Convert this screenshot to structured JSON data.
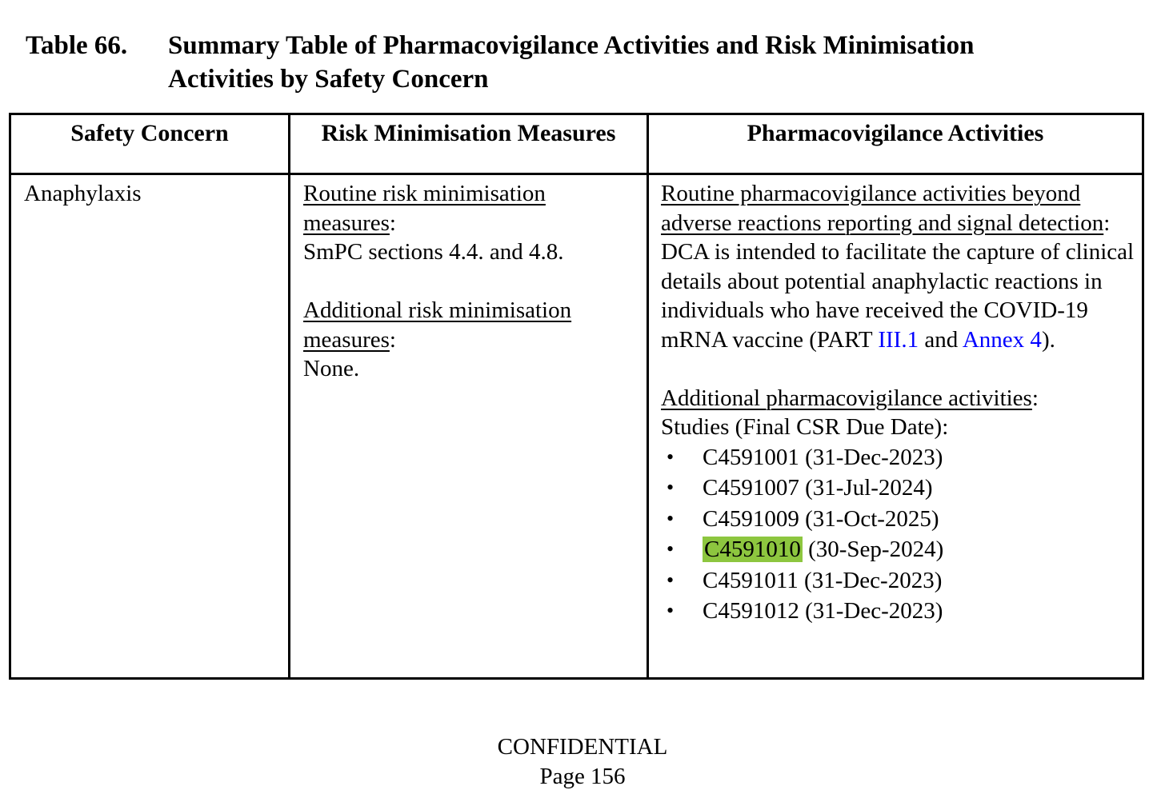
{
  "title": {
    "label": "Table 66.",
    "lines": [
      "Summary Table of Pharmacovigilance Activities and Risk Minimisation",
      "Activities by Safety Concern"
    ]
  },
  "punct": {
    "colon": ":"
  },
  "table": {
    "headers": [
      "Safety Concern",
      "Risk Minimisation Measures",
      "Pharmacovigilance Activities"
    ],
    "row": {
      "safety_concern": "Anaphylaxis",
      "risk_minimisation": {
        "routine_heading": "Routine risk minimisation measures",
        "routine_body": "SmPC sections 4.4. and 4.8.",
        "additional_heading": "Additional risk minimisation measures",
        "additional_body": "None."
      },
      "pharmacovigilance": {
        "routine_heading": "Routine pharmacovigilance activities beyond adverse reactions reporting and signal detection",
        "dca_text_before": "DCA is intended to facilitate the capture of clinical details about potential anaphylactic reactions in individuals who have received the COVID-19 mRNA vaccine (PART ",
        "link_part": "III.1",
        "dca_text_mid": " and ",
        "link_annex": "Annex 4",
        "dca_text_after": ").",
        "additional_heading": "Additional pharmacovigilance activities",
        "studies_label": "Studies (Final CSR Due Date):",
        "studies": [
          {
            "id": "C4591001",
            "date": "(31-Dec-2023)",
            "highlighted": false
          },
          {
            "id": "C4591007",
            "date": "(31-Jul-2024)",
            "highlighted": false
          },
          {
            "id": "C4591009",
            "date": "(31-Oct-2025)",
            "highlighted": false
          },
          {
            "id": "C4591010",
            "date": "(30-Sep-2024)",
            "highlighted": true
          },
          {
            "id": "C4591011",
            "date": "(31-Dec-2023)",
            "highlighted": false
          },
          {
            "id": "C4591012",
            "date": "(31-Dec-2023)",
            "highlighted": false
          }
        ]
      }
    }
  },
  "footer": {
    "confidential": "CONFIDENTIAL",
    "page": "Page 156"
  },
  "colors": {
    "highlight": "#8dc63f",
    "link": "#0000ff"
  }
}
